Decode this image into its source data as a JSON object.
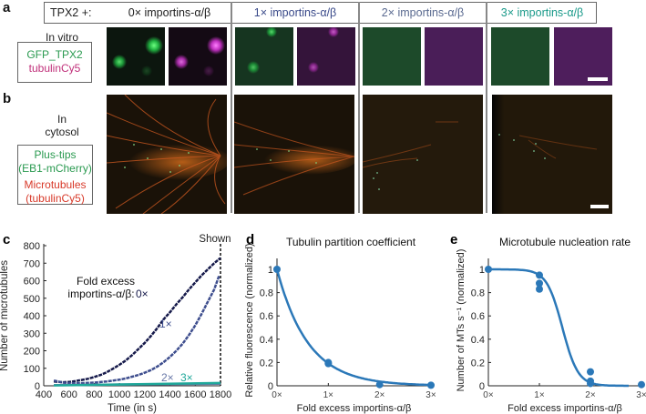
{
  "panels": {
    "a": {
      "letter": "a",
      "header_prefix": "TPX2 +:",
      "conditions": [
        {
          "label": "0× importins-α/β",
          "color": "#222222"
        },
        {
          "label": "1× importins-α/β",
          "color": "#3a4a8a"
        },
        {
          "label": "2× importins-α/β",
          "color": "#5a6a90"
        },
        {
          "label": "3× importins-α/β",
          "color": "#1a9a8a"
        }
      ],
      "row_title": "In vitro",
      "legend": [
        {
          "text": "GFP_TPX2",
          "color": "#2a9a50"
        },
        {
          "text": "tubulinCy5",
          "color": "#c0307a"
        }
      ],
      "channels": [
        "GFP_TPX2",
        "tubulinCy5"
      ],
      "scale_bar": true
    },
    "b": {
      "letter": "b",
      "row_title_1": "In",
      "row_title_2": "cytosol",
      "legend": [
        {
          "text": "Plus-tips",
          "color": "#2a9a50"
        },
        {
          "text": "(EB1-mCherry)",
          "color": "#2a9a50"
        },
        {
          "text": "Microtubules",
          "color": "#d83a2a"
        },
        {
          "text": "(tubulinCy5)",
          "color": "#d83a2a"
        }
      ],
      "scale_bar": true
    },
    "c": {
      "letter": "c"
    },
    "d": {
      "letter": "d"
    },
    "e": {
      "letter": "e"
    }
  },
  "chart_data": [
    {
      "id": "c",
      "type": "line",
      "title": "",
      "xlabel": "Time (in s)",
      "ylabel": "Number of microtubules",
      "xlim": [
        400,
        1800
      ],
      "ylim": [
        0,
        800
      ],
      "xticks": [
        400,
        600,
        800,
        1000,
        1200,
        1400,
        1600,
        1800
      ],
      "yticks": [
        0,
        100,
        200,
        300,
        400,
        500,
        600,
        700,
        800
      ],
      "annotation": {
        "line1": "Fold excess",
        "line2": "importins-α/β:"
      },
      "marker_label": "Shown",
      "marker_x": 1800,
      "series": [
        {
          "name": "0×",
          "color": "#15194a",
          "x": [
            480,
            550,
            600,
            650,
            700,
            750,
            800,
            850,
            900,
            950,
            1000,
            1050,
            1100,
            1150,
            1200,
            1250,
            1300,
            1350,
            1400,
            1450,
            1500,
            1550,
            1600,
            1650,
            1700,
            1750,
            1800
          ],
          "y": [
            25,
            20,
            22,
            27,
            33,
            40,
            50,
            62,
            78,
            98,
            120,
            145,
            175,
            210,
            245,
            285,
            330,
            380,
            420,
            465,
            505,
            550,
            590,
            630,
            665,
            700,
            730
          ]
        },
        {
          "name": "1×",
          "color": "#3e4e8e",
          "x": [
            480,
            550,
            600,
            700,
            800,
            900,
            1000,
            1050,
            1100,
            1150,
            1200,
            1250,
            1300,
            1350,
            1400,
            1450,
            1500,
            1550,
            1600,
            1650,
            1700,
            1750,
            1790
          ],
          "y": [
            30,
            18,
            15,
            15,
            18,
            25,
            35,
            42,
            52,
            62,
            75,
            90,
            110,
            135,
            165,
            200,
            240,
            290,
            345,
            410,
            480,
            550,
            630
          ]
        },
        {
          "name": "2×",
          "color": "#6878a8",
          "x": [
            480,
            1800
          ],
          "y": [
            4,
            12
          ]
        },
        {
          "name": "3×",
          "color": "#1fa89a",
          "x": [
            480,
            1800
          ],
          "y": [
            2,
            16
          ]
        }
      ]
    },
    {
      "id": "d",
      "type": "scatter",
      "title": "Tubulin partition coefficient",
      "xlabel": "Fold excess importins-α/β",
      "ylabel": "Relative fluorescence (normalized)",
      "categories": [
        "0×",
        "1×",
        "2×",
        "3×"
      ],
      "xlim": [
        0,
        3
      ],
      "ylim": [
        0,
        1
      ],
      "yticks": [
        0,
        0.2,
        0.4,
        0.6,
        0.8,
        1
      ],
      "ytick_labels": [
        "0",
        "0.2",
        "0.4",
        "0.6",
        "0.8",
        "1"
      ],
      "color": "#2b78b8",
      "points": [
        [
          0,
          1.0
        ],
        [
          1,
          0.19
        ],
        [
          1,
          0.2
        ],
        [
          2,
          0.01
        ],
        [
          3,
          0.005
        ]
      ],
      "fit": {
        "model": "exponential",
        "decay_rate": 1.65
      }
    },
    {
      "id": "e",
      "type": "scatter",
      "title": "Microtubule nucleation rate",
      "xlabel": "Fold excess importins-α/β",
      "ylabel": "Number of MTs s⁻¹ (normalized)",
      "categories": [
        "0×",
        "1×",
        "2×",
        "3×"
      ],
      "xlim": [
        0,
        3
      ],
      "ylim": [
        0,
        1
      ],
      "yticks": [
        0,
        0.2,
        0.4,
        0.6,
        0.8,
        1
      ],
      "ytick_labels": [
        "0",
        "0.2",
        "0.4",
        "0.6",
        "0.8",
        "1"
      ],
      "color": "#2b78b8",
      "points": [
        [
          0,
          1.0
        ],
        [
          1,
          0.95
        ],
        [
          1,
          0.88
        ],
        [
          1,
          0.83
        ],
        [
          2,
          0.12
        ],
        [
          2,
          0.04
        ],
        [
          2,
          0.02
        ],
        [
          3,
          0.01
        ]
      ],
      "fit": {
        "model": "sigmoid",
        "midpoint": 1.45,
        "steepness": 6.5,
        "x_end": 2.75
      }
    }
  ]
}
